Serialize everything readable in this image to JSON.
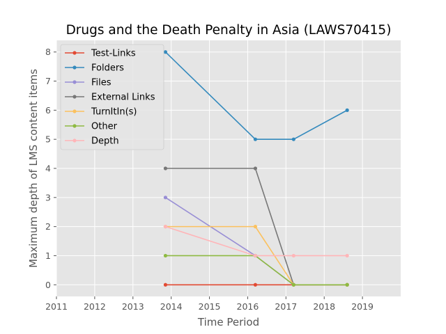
{
  "chart_data": {
    "type": "line",
    "title": "Drugs and the Death Penalty in Asia (LAWS70415)",
    "xlabel": "Time Period",
    "ylabel": "Maximum depth of LMS content items",
    "xlim": [
      2011,
      2020
    ],
    "ylim": [
      -0.4,
      8.4
    ],
    "x_ticks": [
      "2011",
      "2012",
      "2013",
      "2014",
      "2015",
      "2016",
      "2017",
      "2018",
      "2019"
    ],
    "y_ticks": [
      "0",
      "1",
      "2",
      "3",
      "4",
      "5",
      "6",
      "7",
      "8"
    ],
    "x": [
      2013.85,
      2016.2,
      2017.2,
      2018.6
    ],
    "grid": true,
    "legend_position": "top-left",
    "series": [
      {
        "name": "Test-Links",
        "color": "#E24A33",
        "values": [
          0,
          0,
          0,
          0
        ]
      },
      {
        "name": "Folders",
        "color": "#348ABD",
        "values": [
          8,
          5,
          5,
          6
        ]
      },
      {
        "name": "Files",
        "color": "#988ED5",
        "values": [
          3,
          1,
          0,
          0
        ]
      },
      {
        "name": "External Links",
        "color": "#777777",
        "values": [
          4,
          4,
          0,
          0
        ]
      },
      {
        "name": "TurnItIn(s)",
        "color": "#FBC15E",
        "values": [
          2,
          2,
          0,
          0
        ]
      },
      {
        "name": "Other",
        "color": "#8EBA42",
        "values": [
          1,
          1,
          0,
          0
        ]
      },
      {
        "name": "Depth",
        "color": "#FFB5B8",
        "values": [
          2,
          1,
          1,
          1
        ]
      }
    ]
  }
}
